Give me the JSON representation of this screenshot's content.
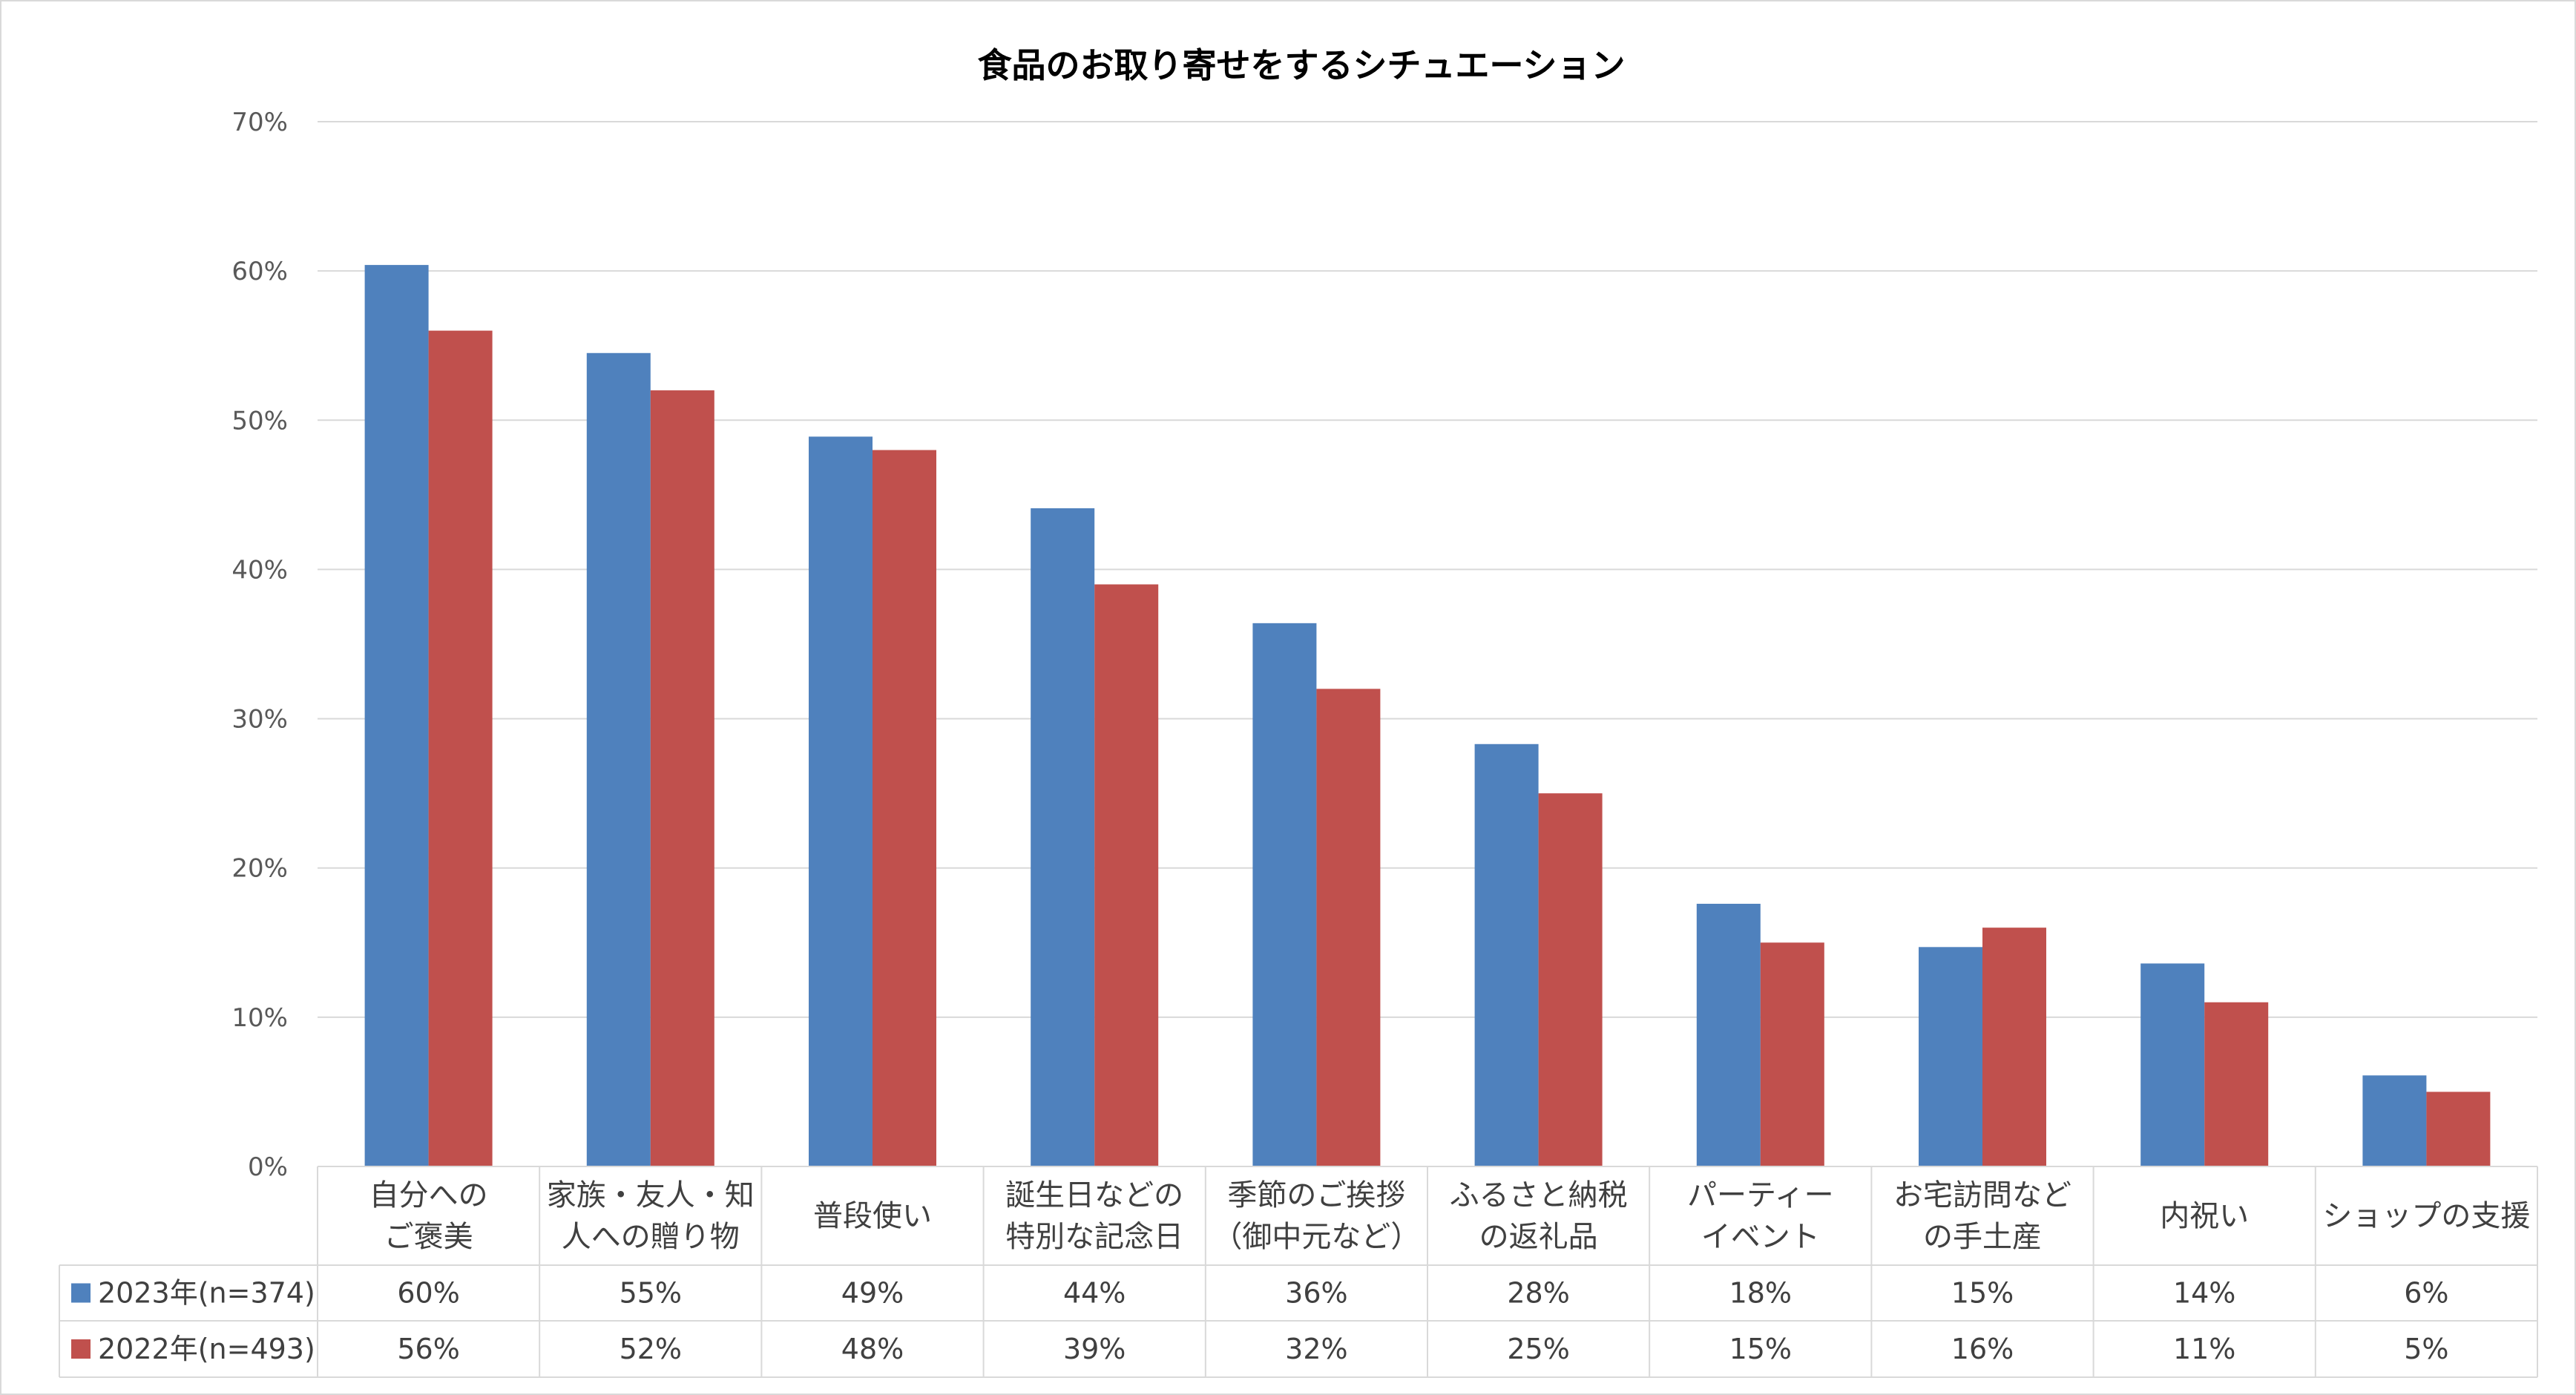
{
  "chart_data": {
    "type": "bar",
    "title": "食品のお取り寄せをするシチュエーション",
    "ylim": [
      0,
      70
    ],
    "y_ticks": [
      0,
      10,
      20,
      30,
      40,
      50,
      60,
      70
    ],
    "y_tick_labels": [
      "0%",
      "10%",
      "20%",
      "30%",
      "40%",
      "50%",
      "60%",
      "70%"
    ],
    "grid": true,
    "legend": "data-table-left",
    "categories": [
      [
        "自分への",
        "ご褒美"
      ],
      [
        "家族・友人・知",
        "人への贈り物"
      ],
      [
        "普段使い"
      ],
      [
        "誕生日などの",
        "特別な記念日"
      ],
      [
        "季節のご挨拶",
        "（御中元など）"
      ],
      [
        "ふるさと納税",
        "の返礼品"
      ],
      [
        "パーティー",
        "イベント"
      ],
      [
        "お宅訪問など",
        "の手土産"
      ],
      [
        "内祝い"
      ],
      [
        "ショップの支援"
      ]
    ],
    "series": [
      {
        "name": "2023年(n=374)",
        "color": "#4F81BD",
        "values": [
          60.4,
          54.5,
          48.9,
          44.1,
          36.4,
          28.3,
          17.6,
          14.7,
          13.6,
          6.1
        ],
        "labels": [
          "60%",
          "55%",
          "49%",
          "44%",
          "36%",
          "28%",
          "18%",
          "15%",
          "14%",
          "6%"
        ]
      },
      {
        "name": "2022年(n=493)",
        "color": "#C0504D",
        "values": [
          56,
          52,
          48,
          39,
          32,
          25,
          15,
          16,
          11,
          5
        ],
        "labels": [
          "56%",
          "52%",
          "48%",
          "39%",
          "32%",
          "25%",
          "15%",
          "16%",
          "11%",
          "5%"
        ]
      }
    ]
  }
}
